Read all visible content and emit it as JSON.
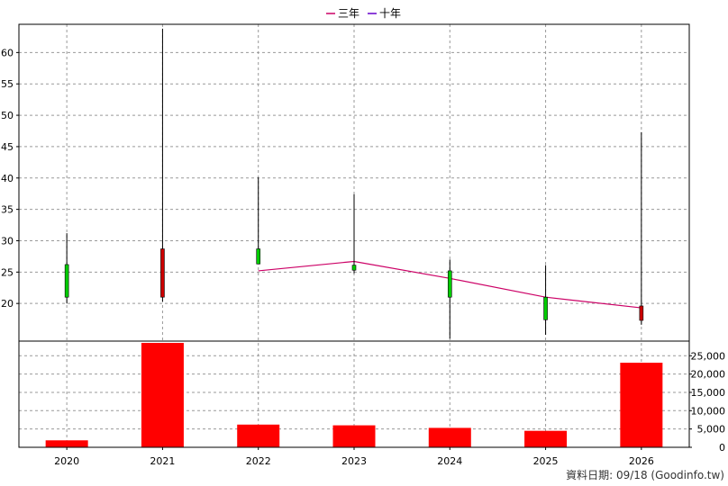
{
  "footer": "資料日期: 09/18  (Goodinfo.tw)",
  "legend": [
    {
      "name": "三年",
      "color": "#cc0066"
    },
    {
      "name": "十年",
      "color": "#6600cc"
    }
  ],
  "chart_data": {
    "type": "candlestick+bar",
    "categories": [
      "2020",
      "2021",
      "2022",
      "2023",
      "2024",
      "2025",
      "2026"
    ],
    "price_axis": {
      "ylim": [
        14,
        64.5
      ],
      "ticks": [
        20,
        25,
        30,
        35,
        40,
        45,
        50,
        55,
        60
      ],
      "grid": true
    },
    "candles": [
      {
        "x": "2020",
        "open": 21.0,
        "close": 26.2,
        "high": 31.2,
        "low": 20.0,
        "color": "#00cc00"
      },
      {
        "x": "2021",
        "open": 28.7,
        "close": 21.0,
        "high": 63.8,
        "low": 20.3,
        "color": "#cc0000"
      },
      {
        "x": "2022",
        "open": 26.3,
        "close": 28.7,
        "high": 40.1,
        "low": 26.3,
        "color": "#00cc00"
      },
      {
        "x": "2023",
        "open": 25.3,
        "close": 26.1,
        "high": 37.4,
        "low": 24.8,
        "color": "#00cc00"
      },
      {
        "x": "2024",
        "open": 21.0,
        "close": 25.2,
        "high": 27.0,
        "low": 14.4,
        "color": "#00cc00"
      },
      {
        "x": "2025",
        "open": 17.4,
        "close": 21.0,
        "high": 26.1,
        "low": 15.0,
        "color": "#00cc00"
      },
      {
        "x": "2026",
        "open": 19.6,
        "close": 17.3,
        "high": 47.3,
        "low": 16.6,
        "color": "#cc0000"
      }
    ],
    "three_year_line": {
      "name": "三年",
      "color": "#cc0066",
      "points": [
        [
          "2022",
          25.2
        ],
        [
          "2023",
          26.7
        ],
        [
          "2024",
          24.0
        ],
        [
          "2025",
          21.0
        ],
        [
          "2026",
          19.3
        ]
      ]
    },
    "volume_axis": {
      "ylim": [
        0,
        29000
      ],
      "ticks": [
        0,
        5000,
        10000,
        15000,
        20000,
        25000
      ],
      "tick_labels": [
        "0",
        "5,000",
        "10,000",
        "15,000",
        "20,000",
        "25,000"
      ]
    },
    "volume": [
      1900,
      28500,
      6200,
      6000,
      5300,
      4500,
      23100
    ],
    "volume_color": "#ff0000"
  }
}
